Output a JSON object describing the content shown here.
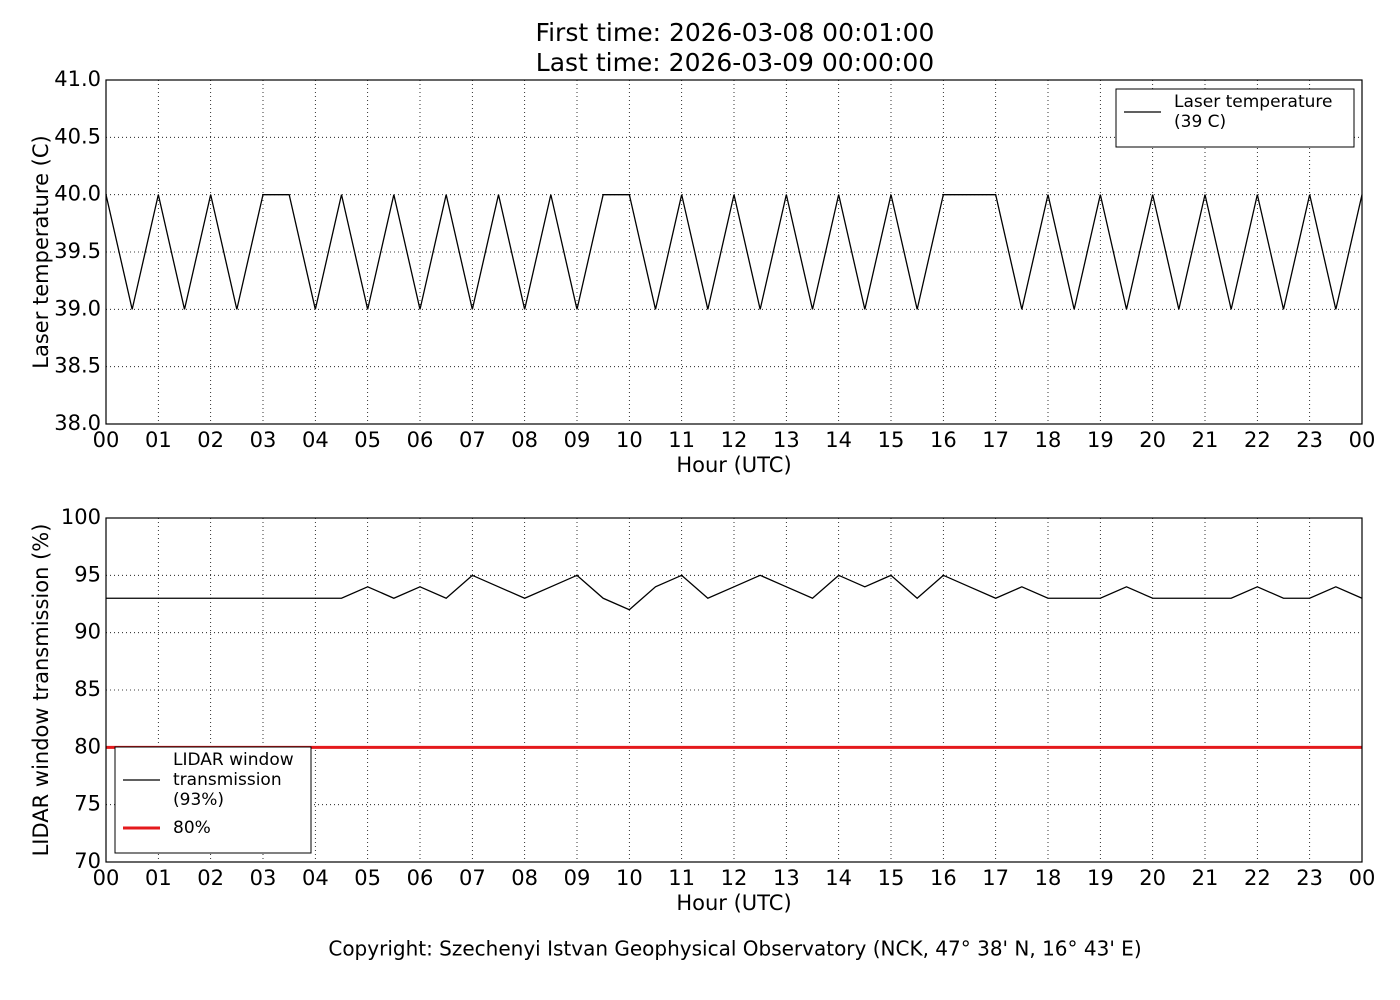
{
  "chart_data": [
    {
      "type": "line",
      "title": [
        "First time: 2026-03-08 00:01:00",
        "Last time: 2026-03-09 00:00:00"
      ],
      "x_label": "Hour (UTC)",
      "y_label": "Laser temperature (C)",
      "x": [
        0,
        0.5,
        1,
        1.5,
        2,
        2.5,
        3,
        3.5,
        4,
        4.5,
        5,
        5.5,
        6,
        6.5,
        7,
        7.5,
        8,
        8.5,
        9,
        9.5,
        10,
        10.5,
        11,
        11.5,
        12,
        12.5,
        13,
        13.5,
        14,
        14.5,
        15,
        15.5,
        16,
        16.5,
        17,
        17.5,
        18,
        18.5,
        19,
        19.5,
        20,
        20.5,
        21,
        21.5,
        22,
        22.5,
        23,
        23.5,
        24
      ],
      "series": [
        {
          "name": [
            "Laser temperature",
            "(39 C)"
          ],
          "color": "#000000",
          "values": [
            40,
            39,
            40,
            39,
            40,
            39,
            40,
            40,
            39,
            40,
            39,
            40,
            39,
            40,
            39,
            40,
            39,
            40,
            39,
            40,
            40,
            39,
            40,
            39,
            40,
            39,
            40,
            39,
            40,
            39,
            40,
            39,
            40,
            40,
            40,
            39,
            40,
            39,
            40,
            39,
            40,
            39,
            40,
            39,
            40,
            39,
            40,
            39,
            40
          ]
        }
      ],
      "xlim": [
        0,
        24
      ],
      "xticks": [
        {
          "value": 0,
          "label": "00"
        },
        {
          "value": 1,
          "label": "01"
        },
        {
          "value": 2,
          "label": "02"
        },
        {
          "value": 3,
          "label": "03"
        },
        {
          "value": 4,
          "label": "04"
        },
        {
          "value": 5,
          "label": "05"
        },
        {
          "value": 6,
          "label": "06"
        },
        {
          "value": 7,
          "label": "07"
        },
        {
          "value": 8,
          "label": "08"
        },
        {
          "value": 9,
          "label": "09"
        },
        {
          "value": 10,
          "label": "10"
        },
        {
          "value": 11,
          "label": "11"
        },
        {
          "value": 12,
          "label": "12"
        },
        {
          "value": 13,
          "label": "13"
        },
        {
          "value": 14,
          "label": "14"
        },
        {
          "value": 15,
          "label": "15"
        },
        {
          "value": 16,
          "label": "16"
        },
        {
          "value": 17,
          "label": "17"
        },
        {
          "value": 18,
          "label": "18"
        },
        {
          "value": 19,
          "label": "19"
        },
        {
          "value": 20,
          "label": "20"
        },
        {
          "value": 21,
          "label": "21"
        },
        {
          "value": 22,
          "label": "22"
        },
        {
          "value": 23,
          "label": "23"
        },
        {
          "value": 24,
          "label": "00"
        }
      ],
      "ylim": [
        38,
        41
      ],
      "yticks": [
        {
          "value": 38,
          "label": "38.0"
        },
        38.5,
        {
          "value": 39,
          "label": "39.0"
        },
        39.5,
        {
          "value": 40,
          "label": "40.0"
        },
        40.5,
        {
          "value": 41,
          "label": "41.0"
        }
      ],
      "grid": true,
      "legend": "upper right"
    },
    {
      "type": "line",
      "x_label": "Hour (UTC)",
      "y_label": "LIDAR window transmission (%)",
      "x": [
        0,
        0.5,
        1,
        1.5,
        2,
        2.5,
        3,
        3.5,
        4,
        4.5,
        5,
        5.5,
        6,
        6.5,
        7,
        7.5,
        8,
        8.5,
        9,
        9.5,
        10,
        10.5,
        11,
        11.5,
        12,
        12.5,
        13,
        13.5,
        14,
        14.5,
        15,
        15.5,
        16,
        16.5,
        17,
        17.5,
        18,
        18.5,
        19,
        19.5,
        20,
        20.5,
        21,
        21.5,
        22,
        22.5,
        23,
        23.5,
        24
      ],
      "series": [
        {
          "name": [
            "LIDAR window",
            "transmission",
            "(93%)"
          ],
          "color": "#000000",
          "values": [
            93,
            93,
            93,
            93,
            93,
            93,
            93,
            93,
            93,
            93,
            94,
            93,
            94,
            93,
            95,
            94,
            93,
            94,
            95,
            93,
            92,
            94,
            95,
            93,
            94,
            95,
            94,
            93,
            95,
            94,
            95,
            93,
            95,
            94,
            93,
            94,
            93,
            93,
            93,
            94,
            93,
            93,
            93,
            93,
            94,
            93,
            93,
            94,
            93
          ]
        },
        {
          "name": [
            "80%"
          ],
          "color": "#e41a1c",
          "values": [
            80,
            80,
            80,
            80,
            80,
            80,
            80,
            80,
            80,
            80,
            80,
            80,
            80,
            80,
            80,
            80,
            80,
            80,
            80,
            80,
            80,
            80,
            80,
            80,
            80,
            80,
            80,
            80,
            80,
            80,
            80,
            80,
            80,
            80,
            80,
            80,
            80,
            80,
            80,
            80,
            80,
            80,
            80,
            80,
            80,
            80,
            80,
            80,
            80
          ]
        }
      ],
      "xlim": [
        0,
        24
      ],
      "xticks": [
        {
          "value": 0,
          "label": "00"
        },
        {
          "value": 1,
          "label": "01"
        },
        {
          "value": 2,
          "label": "02"
        },
        {
          "value": 3,
          "label": "03"
        },
        {
          "value": 4,
          "label": "04"
        },
        {
          "value": 5,
          "label": "05"
        },
        {
          "value": 6,
          "label": "06"
        },
        {
          "value": 7,
          "label": "07"
        },
        {
          "value": 8,
          "label": "08"
        },
        {
          "value": 9,
          "label": "09"
        },
        {
          "value": 10,
          "label": "10"
        },
        {
          "value": 11,
          "label": "11"
        },
        {
          "value": 12,
          "label": "12"
        },
        {
          "value": 13,
          "label": "13"
        },
        {
          "value": 14,
          "label": "14"
        },
        {
          "value": 15,
          "label": "15"
        },
        {
          "value": 16,
          "label": "16"
        },
        {
          "value": 17,
          "label": "17"
        },
        {
          "value": 18,
          "label": "18"
        },
        {
          "value": 19,
          "label": "19"
        },
        {
          "value": 20,
          "label": "20"
        },
        {
          "value": 21,
          "label": "21"
        },
        {
          "value": 22,
          "label": "22"
        },
        {
          "value": 23,
          "label": "23"
        },
        {
          "value": 24,
          "label": "00"
        }
      ],
      "ylim": [
        70,
        100
      ],
      "yticks": [
        70,
        75,
        80,
        85,
        90,
        95,
        100
      ],
      "grid": true,
      "legend": "lower left"
    }
  ],
  "footer": "Copyright: Szechenyi Istvan Geophysical Observatory (NCK, 47° 38' N, 16° 43' E)"
}
